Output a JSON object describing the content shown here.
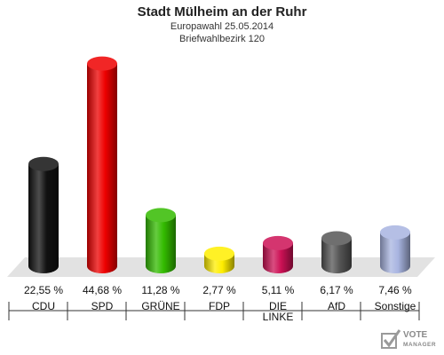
{
  "header": {
    "title": "Stadt Mülheim an der Ruhr",
    "subtitle1": "Europawahl 25.05.2014",
    "subtitle2": "Briefwahlbezirk 120"
  },
  "logo": {
    "line1": "VOTE",
    "line2": "MANAGER"
  },
  "chart_data": {
    "type": "bar",
    "title": "Stadt Mülheim an der Ruhr",
    "subtitle": [
      "Europawahl 25.05.2014",
      "Briefwahlbezirk 120"
    ],
    "categories": [
      "CDU",
      "SPD",
      "GRÜNE",
      "FDP",
      "DIE LINKE",
      "AfD",
      "Sonstige"
    ],
    "values": [
      22.55,
      44.68,
      11.28,
      2.77,
      5.11,
      6.17,
      7.46
    ],
    "value_labels": [
      "22,55 %",
      "44,68 %",
      "11,28 %",
      "2,77 %",
      "5,11 %",
      "6,17 %",
      "7,46 %"
    ],
    "colors": [
      "#111111",
      "#ee0000",
      "#33bb00",
      "#ffee00",
      "#cc1155",
      "#555555",
      "#a8b4e0"
    ],
    "ylim": [
      0,
      45
    ],
    "grid": false,
    "legend": "none"
  }
}
